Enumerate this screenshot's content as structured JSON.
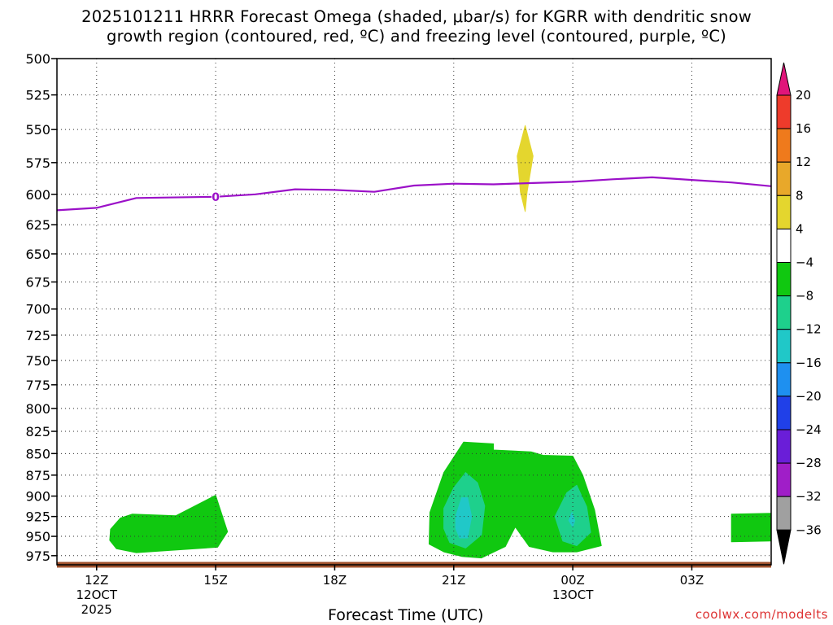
{
  "title": {
    "line1": "2025101211 HRRR Forecast Omega (shaded, μbar/s) for KGRR with dendritic snow",
    "line2": "growth region (contoured, red, ºC) and freezing level (contoured, purple, ºC)"
  },
  "credit": "coolwx.com/modelts",
  "chart_data": {
    "type": "area",
    "title": "2025101211 HRRR Forecast Omega (shaded, μbar/s) for KGRR with dendritic snow growth region (contoured, red, ºC) and freezing level (contoured, purple, ºC)",
    "xlabel": "Forecast Time (UTC)",
    "ylabel": "",
    "x_unit": "hours after 2025-10-12 12Z",
    "xlim": [
      -1,
      17
    ],
    "ylim": [
      500,
      987
    ],
    "y_scale": "log-pressure (inverted, 500 at top)",
    "grid": true,
    "x_ticks": [
      {
        "x": 0,
        "label": "12Z",
        "sub1": "12OCT",
        "sub2": "2025"
      },
      {
        "x": 3,
        "label": "15Z",
        "sub1": "",
        "sub2": ""
      },
      {
        "x": 6,
        "label": "18Z",
        "sub1": "",
        "sub2": ""
      },
      {
        "x": 9,
        "label": "21Z",
        "sub1": "",
        "sub2": ""
      },
      {
        "x": 12,
        "label": "00Z",
        "sub1": "13OCT",
        "sub2": ""
      },
      {
        "x": 15,
        "label": "03Z",
        "sub1": "",
        "sub2": ""
      }
    ],
    "y_ticks": [
      500,
      525,
      550,
      575,
      600,
      625,
      650,
      675,
      700,
      725,
      750,
      775,
      800,
      825,
      850,
      875,
      900,
      925,
      950,
      975
    ],
    "colorbar": {
      "unit": "μbar/s",
      "labels": [
        "20",
        "16",
        "12",
        "8",
        "4",
        "−4",
        "−8",
        "−12",
        "−16",
        "−20",
        "−24",
        "−28",
        "−32",
        "−36"
      ],
      "bins": [
        {
          "from": 20,
          "to": null,
          "color": "#e0157a"
        },
        {
          "from": 16,
          "to": 20,
          "color": "#ee3b2b"
        },
        {
          "from": 12,
          "to": 16,
          "color": "#ef7a1c"
        },
        {
          "from": 8,
          "to": 12,
          "color": "#e8a82a"
        },
        {
          "from": 4,
          "to": 8,
          "color": "#e4d62e"
        },
        {
          "from": -4,
          "to": 4,
          "color": "#ffffff"
        },
        {
          "from": -8,
          "to": -4,
          "color": "#10c810"
        },
        {
          "from": -12,
          "to": -8,
          "color": "#1ed08c"
        },
        {
          "from": -16,
          "to": -12,
          "color": "#20c8c8"
        },
        {
          "from": -20,
          "to": -16,
          "color": "#1e90f0"
        },
        {
          "from": -24,
          "to": -20,
          "color": "#2040e8"
        },
        {
          "from": -28,
          "to": -24,
          "color": "#6a1ed8"
        },
        {
          "from": -32,
          "to": -28,
          "color": "#a01ec8"
        },
        {
          "from": -36,
          "to": -32,
          "color": "#a0a0a0"
        },
        {
          "from": null,
          "to": -36,
          "color": "#000000"
        }
      ]
    },
    "freezing_level": {
      "color": "#9b10c8",
      "contour_label": "0",
      "contour_label_x": 3,
      "points": [
        [
          -1,
          613
        ],
        [
          0,
          611
        ],
        [
          1,
          603
        ],
        [
          3,
          602
        ],
        [
          4,
          600
        ],
        [
          5,
          596
        ],
        [
          6,
          596.5
        ],
        [
          7,
          598
        ],
        [
          8,
          593
        ],
        [
          9,
          591.5
        ],
        [
          10,
          592
        ],
        [
          11,
          591
        ],
        [
          12,
          590
        ],
        [
          13,
          588
        ],
        [
          14,
          586.5
        ],
        [
          15,
          588.5
        ],
        [
          16,
          590.5
        ],
        [
          17,
          593.5
        ]
      ]
    },
    "omega_regions": [
      {
        "name": "omega-region-1",
        "bin_color": "#10c810",
        "polygon": [
          [
            0.33,
            955
          ],
          [
            0.35,
            941
          ],
          [
            0.6,
            927
          ],
          [
            0.9,
            922
          ],
          [
            2.0,
            924
          ],
          [
            3.0,
            899
          ],
          [
            3.1,
            914
          ],
          [
            3.3,
            944
          ],
          [
            3.05,
            964
          ],
          [
            1.0,
            971
          ],
          [
            0.5,
            966
          ]
        ]
      },
      {
        "name": "omega-region-2",
        "bin_color": "#10c810",
        "polygon": [
          [
            8.4,
            920
          ],
          [
            8.75,
            872
          ],
          [
            9.25,
            837
          ],
          [
            9.6,
            838
          ],
          [
            10.0,
            839
          ],
          [
            10.0,
            846
          ],
          [
            10.95,
            848
          ],
          [
            11.25,
            852
          ],
          [
            12.0,
            853
          ],
          [
            12.25,
            875
          ],
          [
            12.55,
            917
          ],
          [
            12.72,
            962
          ],
          [
            12.1,
            970
          ],
          [
            11.5,
            970
          ],
          [
            10.9,
            963
          ],
          [
            10.55,
            938
          ],
          [
            10.3,
            963
          ],
          [
            9.7,
            978
          ],
          [
            9.2,
            976
          ],
          [
            8.75,
            970
          ],
          [
            8.38,
            960
          ]
        ]
      },
      {
        "name": "omega-region-3",
        "bin_color": "#1ed08c",
        "polygon": [
          [
            8.75,
            915
          ],
          [
            9.0,
            890
          ],
          [
            9.3,
            872
          ],
          [
            9.6,
            884
          ],
          [
            9.78,
            912
          ],
          [
            9.7,
            948
          ],
          [
            9.3,
            965
          ],
          [
            8.9,
            958
          ],
          [
            8.75,
            940
          ]
        ]
      },
      {
        "name": "omega-region-4",
        "bin_color": "#20c8c8",
        "polygon": [
          [
            9.05,
            925
          ],
          [
            9.2,
            902
          ],
          [
            9.35,
            902
          ],
          [
            9.45,
            925
          ],
          [
            9.35,
            952
          ],
          [
            9.15,
            952
          ],
          [
            9.05,
            940
          ]
        ]
      },
      {
        "name": "omega-region-5",
        "bin_color": "#1ed08c",
        "polygon": [
          [
            11.55,
            925
          ],
          [
            11.85,
            896
          ],
          [
            12.1,
            887
          ],
          [
            12.35,
            913
          ],
          [
            12.45,
            945
          ],
          [
            12.1,
            962
          ],
          [
            11.75,
            956
          ]
        ]
      },
      {
        "name": "omega-region-6",
        "bin_color": "#20c8c8",
        "polygon": [
          [
            11.9,
            930
          ],
          [
            11.98,
            920
          ],
          [
            12.05,
            930
          ],
          [
            12.0,
            938
          ]
        ]
      },
      {
        "name": "omega-region-7",
        "bin_color": "#10c810",
        "polygon": [
          [
            16.0,
            922
          ],
          [
            17.0,
            921
          ],
          [
            17.0,
            956
          ],
          [
            16.0,
            957
          ]
        ]
      },
      {
        "name": "omega-region-8",
        "bin_color": "#e4d62e",
        "polygon": [
          [
            10.8,
            547
          ],
          [
            11.0,
            570
          ],
          [
            10.85,
            598
          ],
          [
            10.8,
            614
          ],
          [
            10.68,
            598
          ],
          [
            10.6,
            570
          ]
        ]
      }
    ],
    "surface_line": {
      "color": "#a0522d",
      "points": [
        [
          -1,
          987
        ],
        [
          17,
          987
        ]
      ]
    }
  }
}
